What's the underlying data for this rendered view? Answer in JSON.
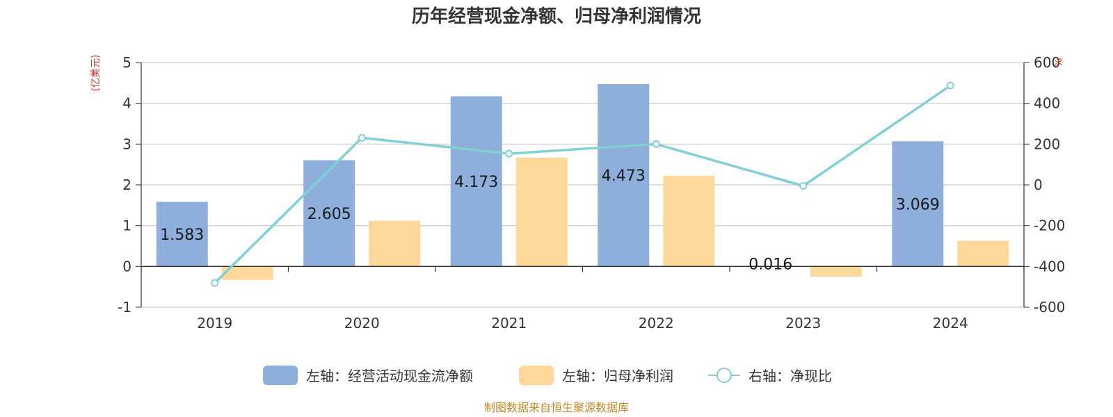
{
  "chart_data": {
    "type": "bar",
    "title": "历年经营现金净额、归母净利润情况",
    "categories": [
      "2019",
      "2020",
      "2021",
      "2022",
      "2023",
      "2024"
    ],
    "left_axis": {
      "unit": "(亿美元)",
      "ylim": [
        -1,
        5
      ],
      "ticks": [
        "5",
        "4",
        "3",
        "2",
        "1",
        "0",
        "-1"
      ]
    },
    "right_axis": {
      "unit": "%",
      "ylim": [
        -600,
        600
      ],
      "ticks": [
        "600",
        "400",
        "200",
        "0",
        "-200",
        "-400",
        "-600"
      ]
    },
    "series": [
      {
        "name": "左轴：经营活动现金流净额",
        "type": "bar",
        "axis": "left",
        "color": "#8eaedb",
        "values": [
          1.583,
          2.605,
          4.173,
          4.473,
          0.016,
          3.069
        ],
        "labels": [
          "1.583",
          "2.605",
          "4.173",
          "4.473",
          "0.016",
          "3.069"
        ]
      },
      {
        "name": "左轴：归母净利润",
        "type": "bar",
        "axis": "left",
        "color": "#fed899",
        "values": [
          -0.33,
          1.12,
          2.67,
          2.22,
          -0.25,
          0.63
        ]
      },
      {
        "name": "右轴：净现比",
        "type": "line",
        "axis": "right",
        "color": "#7fd1d4",
        "values": [
          -481,
          231,
          153,
          200,
          -5,
          487
        ]
      }
    ],
    "legend_position": "bottom",
    "grid": true
  },
  "source": "制图数据来自恒生聚源数据库"
}
